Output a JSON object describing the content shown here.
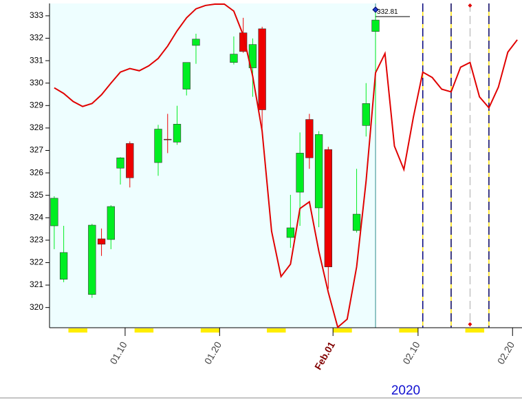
{
  "chart_data": {
    "type": "candlestick",
    "x": [
      "2020-01-02",
      "2020-01-03",
      "2020-01-06",
      "2020-01-07",
      "2020-01-08",
      "2020-01-09",
      "2020-01-10",
      "2020-01-13",
      "2020-01-14",
      "2020-01-15",
      "2020-01-16",
      "2020-01-17",
      "2020-01-21",
      "2020-01-22",
      "2020-01-23",
      "2020-01-24",
      "2020-01-27",
      "2020-01-28",
      "2020-01-29",
      "2020-01-30",
      "2020-01-31",
      "2020-02-03",
      "2020-02-04",
      "2020-02-05"
    ],
    "open": [
      323.64,
      321.26,
      320.58,
      323.06,
      323.03,
      326.21,
      327.31,
      326.46,
      327.5,
      327.37,
      329.73,
      331.68,
      330.92,
      332.24,
      330.68,
      332.42,
      323.12,
      325.14,
      328.38,
      324.44,
      327.04,
      323.43,
      328.11,
      332.3
    ],
    "high": [
      324.96,
      323.64,
      323.73,
      323.52,
      324.56,
      326.7,
      327.4,
      328.14,
      328.63,
      328.99,
      330.92,
      332.2,
      332.08,
      332.91,
      331.99,
      332.51,
      325.02,
      327.8,
      328.63,
      327.86,
      327.16,
      326.18,
      330.0,
      333.24
    ],
    "low": [
      322.6,
      321.13,
      320.43,
      322.3,
      322.6,
      325.48,
      325.35,
      325.87,
      326.88,
      327.25,
      329.45,
      330.86,
      330.83,
      331.35,
      329.39,
      327.86,
      322.66,
      323.64,
      326.18,
      323.58,
      320.83,
      323.34,
      327.62,
      328.17
    ],
    "close": [
      324.87,
      322.45,
      323.67,
      322.82,
      324.5,
      326.67,
      325.78,
      327.95,
      327.49,
      328.17,
      330.92,
      331.96,
      331.29,
      331.41,
      331.72,
      328.81,
      323.55,
      326.88,
      326.67,
      327.71,
      321.81,
      324.16,
      329.09,
      332.81
    ],
    "up_color": "#00ee22",
    "down_color": "#ee0000",
    "overlay": {
      "color": "#e00000",
      "x": [
        "2020-01-02",
        "2020-01-03",
        "2020-01-04",
        "2020-01-05",
        "2020-01-06",
        "2020-01-07",
        "2020-01-08",
        "2020-01-09",
        "2020-01-10",
        "2020-01-11",
        "2020-01-12",
        "2020-01-13",
        "2020-01-14",
        "2020-01-15",
        "2020-01-16",
        "2020-01-17",
        "2020-01-18",
        "2020-01-19",
        "2020-01-20",
        "2020-01-21",
        "2020-01-22",
        "2020-01-23",
        "2020-01-24",
        "2020-01-25",
        "2020-01-26",
        "2020-01-27",
        "2020-01-28",
        "2020-01-29",
        "2020-01-30",
        "2020-01-31",
        "2020-02-01",
        "2020-02-02",
        "2020-02-03",
        "2020-02-04",
        "2020-02-05",
        "2020-02-06",
        "2020-02-07",
        "2020-02-08",
        "2020-02-09",
        "2020-02-10",
        "2020-02-11",
        "2020-02-12",
        "2020-02-13",
        "2020-02-14",
        "2020-02-15",
        "2020-02-16",
        "2020-02-17",
        "2020-02-18",
        "2020-02-19",
        "2020-02-20"
      ],
      "values": [
        329.79,
        329.54,
        329.18,
        328.96,
        329.09,
        329.48,
        330.0,
        330.49,
        330.65,
        330.55,
        330.77,
        331.1,
        331.65,
        332.33,
        332.91,
        333.31,
        333.46,
        333.52,
        333.52,
        333.21,
        332.14,
        330.31,
        327.86,
        323.4,
        321.38,
        321.93,
        324.41,
        324.71,
        322.51,
        320.68,
        319.12,
        319.48,
        321.81,
        325.63,
        330.46,
        331.32,
        327.19,
        326.15,
        328.47,
        330.49,
        330.25,
        329.73,
        329.61,
        330.71,
        330.92,
        329.39,
        328.9,
        329.82,
        331.38,
        331.93
      ]
    },
    "shade_until": "2020-02-05",
    "vlines": [
      "2020-02-10",
      "2020-02-13",
      "2020-02-17"
    ],
    "marker_line": "2020-02-15",
    "xlabel": "2020",
    "xlim": [
      "2020-01-02",
      "2020-02-21"
    ],
    "xticks": [
      {
        "value": "2020-01-10",
        "label": "01.10"
      },
      {
        "value": "2020-01-20",
        "label": "01.20"
      },
      {
        "value": "2020-02-01",
        "label": "Feb.01"
      },
      {
        "value": "2020-02-10",
        "label": "02.10"
      },
      {
        "value": "2020-02-20",
        "label": "02.20"
      }
    ],
    "ylim": [
      319.1,
      333.55
    ],
    "yticks": [
      320,
      321,
      322,
      323,
      324,
      325,
      326,
      327,
      328,
      329,
      330,
      331,
      332,
      333
    ]
  }
}
